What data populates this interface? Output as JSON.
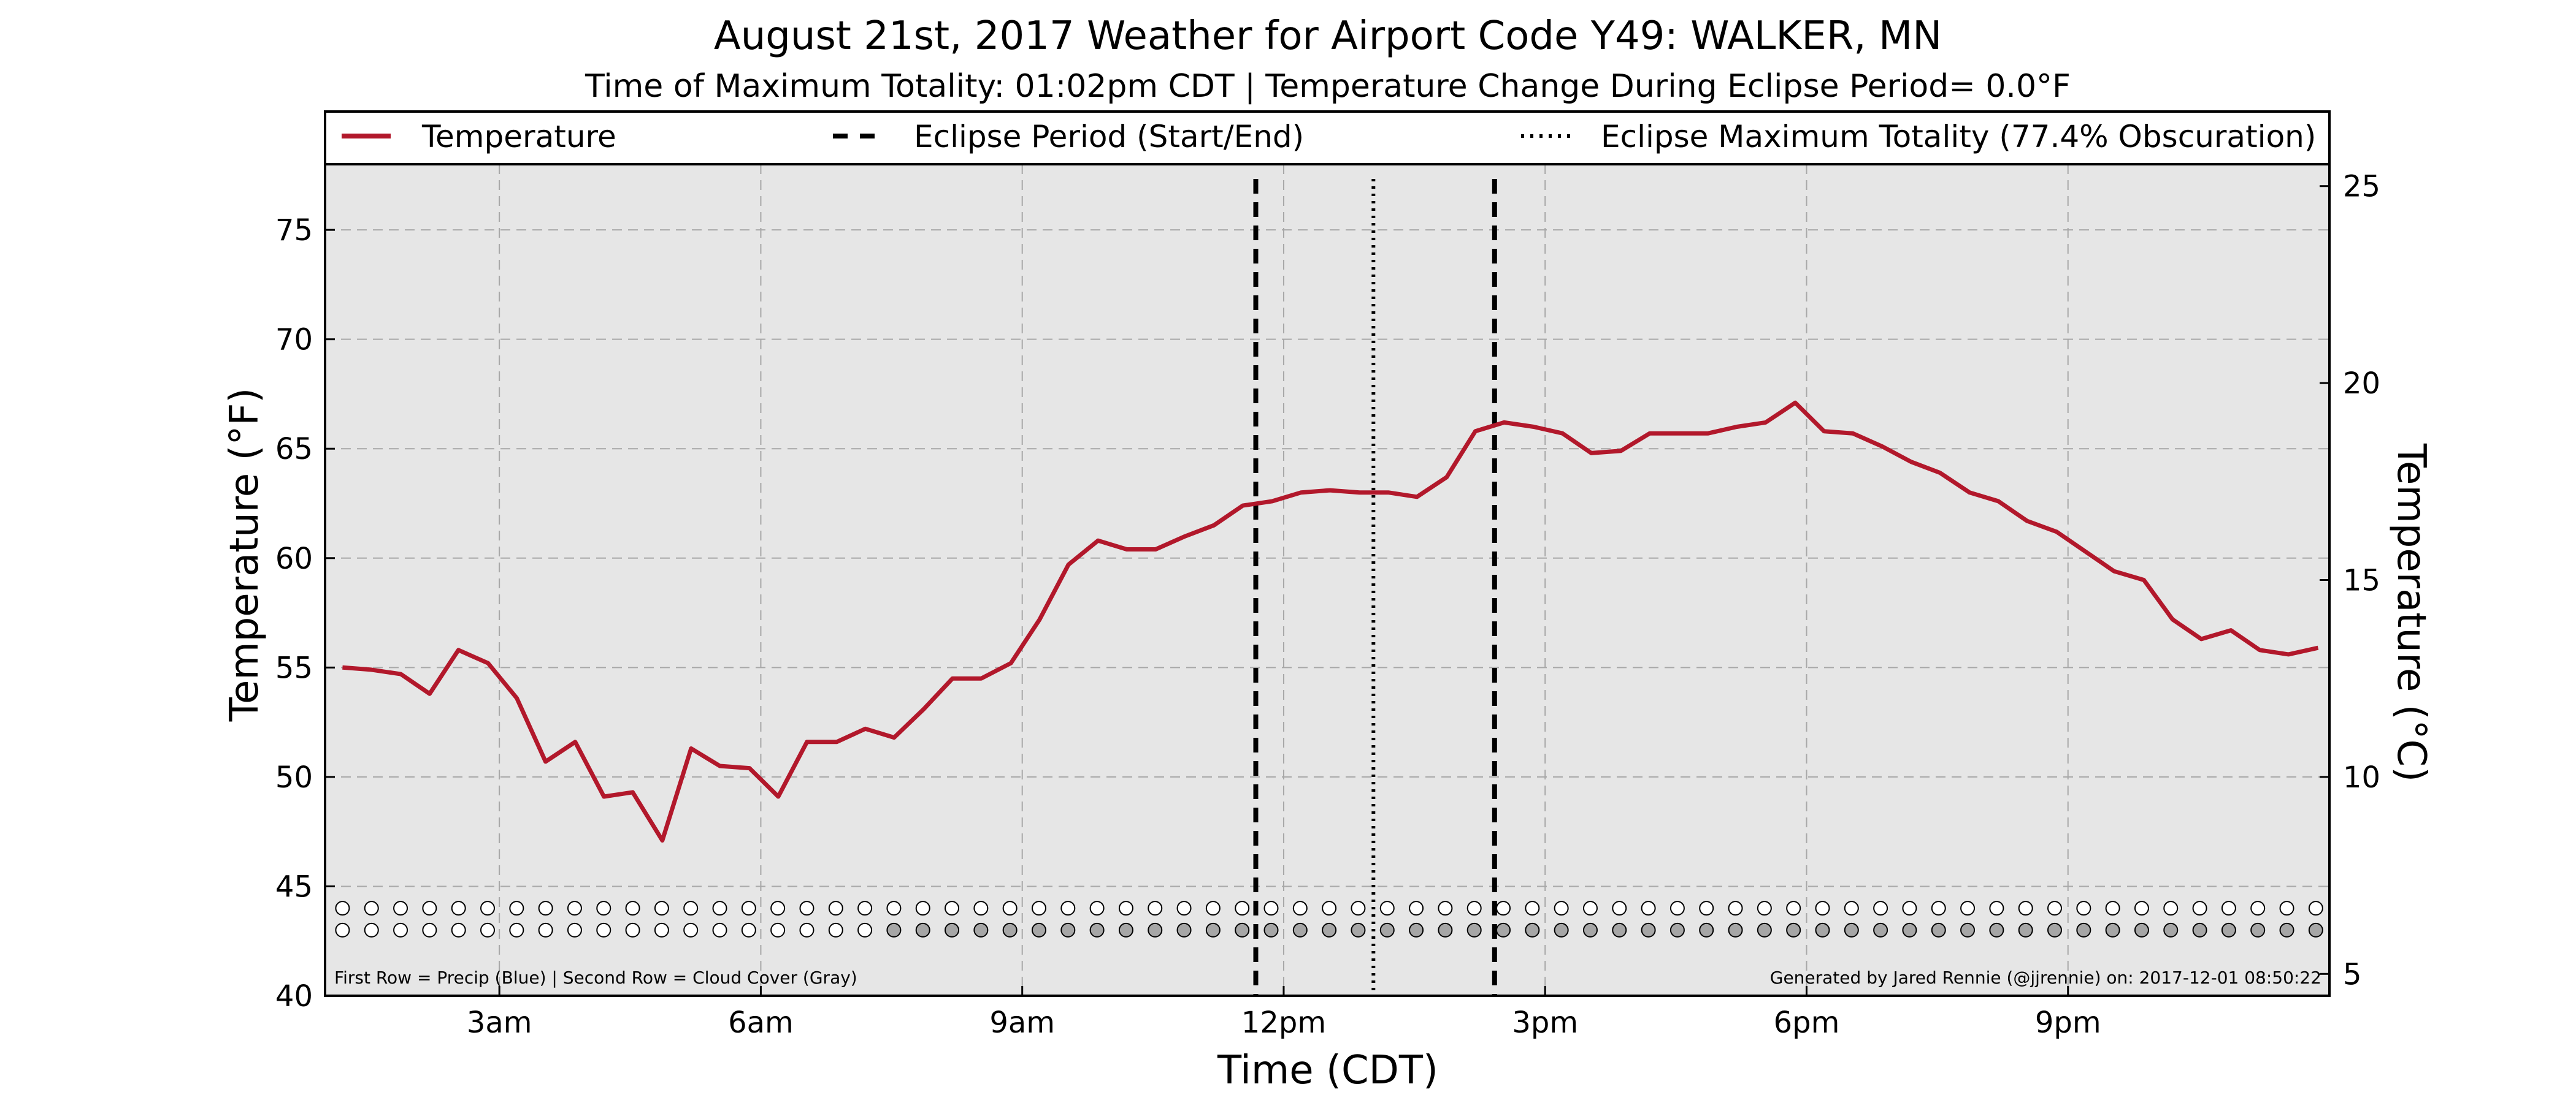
{
  "chart_data": {
    "type": "line",
    "title": "August 21st, 2017 Weather for Airport Code Y49: WALKER, MN",
    "subtitle": "Time of Maximum Totality: 01:02pm CDT | Temperature Change During Eclipse Period= 0.0°F",
    "xlabel": "Time (CDT)",
    "ylabel": "Temperature (°F)",
    "ylabel_right": "Temperature (°C)",
    "xlim": [
      1.0,
      24.0
    ],
    "ylim": [
      40,
      78
    ],
    "xticks": [
      {
        "value": 3,
        "label": "3am"
      },
      {
        "value": 6,
        "label": "6am"
      },
      {
        "value": 9,
        "label": "9am"
      },
      {
        "value": 12,
        "label": "12pm"
      },
      {
        "value": 15,
        "label": "3pm"
      },
      {
        "value": 18,
        "label": "6pm"
      },
      {
        "value": 21,
        "label": "9pm"
      }
    ],
    "yticks": [
      40,
      45,
      50,
      55,
      60,
      65,
      70,
      75
    ],
    "yticks_right": [
      5,
      10,
      15,
      20,
      25
    ],
    "grid": true,
    "legend_position": "top",
    "legend": [
      {
        "label": "Temperature",
        "style": "solid",
        "color": "#b2182b"
      },
      {
        "label": "Eclipse Period (Start/End)",
        "style": "dashed",
        "color": "#000000"
      },
      {
        "label": "Eclipse Maximum Totality (77.4% Obscuration)",
        "style": "dotted",
        "color": "#000000"
      }
    ],
    "series": [
      {
        "name": "Temperature",
        "color": "#b2182b",
        "x": [
          1.2,
          1.53,
          1.87,
          2.2,
          2.53,
          2.87,
          3.2,
          3.53,
          3.87,
          4.2,
          4.53,
          4.87,
          5.2,
          5.53,
          5.87,
          6.2,
          6.53,
          6.87,
          7.2,
          7.53,
          7.87,
          8.2,
          8.53,
          8.87,
          9.2,
          9.53,
          9.87,
          10.2,
          10.53,
          10.87,
          11.2,
          11.53,
          11.87,
          12.2,
          12.53,
          12.87,
          13.2,
          13.53,
          13.87,
          14.2,
          14.53,
          14.87,
          15.2,
          15.53,
          15.87,
          16.2,
          16.53,
          16.87,
          17.2,
          17.53,
          17.87,
          18.2,
          18.53,
          18.87,
          19.2,
          19.53,
          19.87,
          20.2,
          20.53,
          20.87,
          21.2,
          21.53,
          21.87,
          22.2,
          22.53,
          22.87,
          23.2,
          23.53,
          23.87
        ],
        "values": [
          55.0,
          54.9,
          54.7,
          53.8,
          55.8,
          55.2,
          53.6,
          50.7,
          51.6,
          49.1,
          49.3,
          47.1,
          51.3,
          50.5,
          50.4,
          49.1,
          51.6,
          51.6,
          52.2,
          51.8,
          53.1,
          54.5,
          54.5,
          55.2,
          57.2,
          59.7,
          60.8,
          60.4,
          60.4,
          61.0,
          61.5,
          62.4,
          62.6,
          63.0,
          63.1,
          63.0,
          63.0,
          62.8,
          63.7,
          65.8,
          66.2,
          66.0,
          65.7,
          64.8,
          64.9,
          65.7,
          65.7,
          65.7,
          66.0,
          66.2,
          67.1,
          65.8,
          65.7,
          65.1,
          64.4,
          63.9,
          63.0,
          62.6,
          61.7,
          61.2,
          60.3,
          59.4,
          59.0,
          57.2,
          56.3,
          56.7,
          55.8,
          55.6,
          55.9
        ]
      }
    ],
    "eclipse_start": 11.68,
    "eclipse_max": 13.03,
    "eclipse_end": 14.42,
    "indicator_rows": {
      "y_values": [
        44.0,
        43.0
      ],
      "x_start": 1.2,
      "x_step": 0.333,
      "count": 69,
      "precip_color": "#ffffff",
      "cloud_clear_color": "#ffffff",
      "cloud_cover_color": "#a6a6a6",
      "cloud_cover_from": 7.2
    },
    "footnote_left": "First Row = Precip (Blue) | Second Row = Cloud Cover (Gray)",
    "footnote_right": "Generated by Jared Rennie (@jjrennie) on: 2017-12-01 08:50:22"
  }
}
